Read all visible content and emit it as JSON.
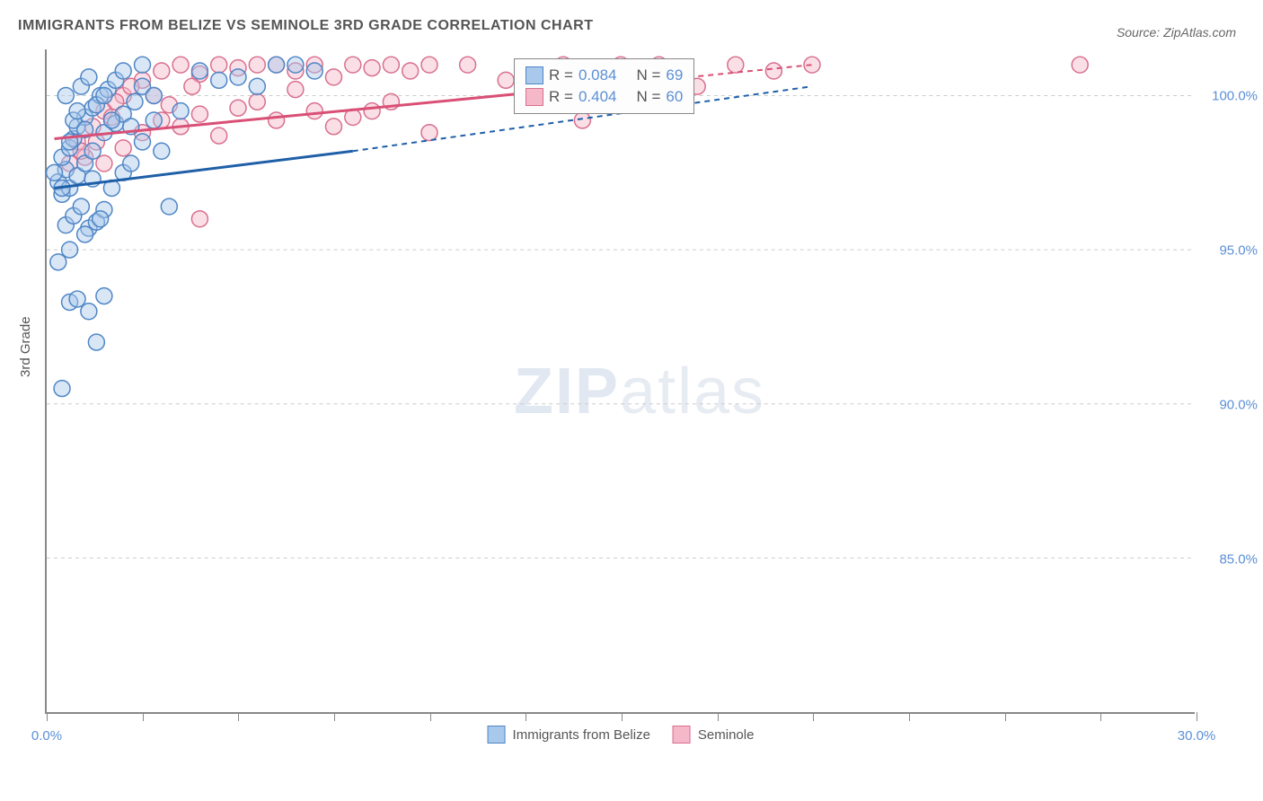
{
  "title": "IMMIGRANTS FROM BELIZE VS SEMINOLE 3RD GRADE CORRELATION CHART",
  "source_label": "Source: ZipAtlas.com",
  "y_axis_label": "3rd Grade",
  "chart": {
    "type": "scatter",
    "xlim": [
      0,
      30
    ],
    "ylim": [
      80,
      101.5
    ],
    "y_ticks": [
      85.0,
      90.0,
      95.0,
      100.0
    ],
    "y_tick_labels": [
      "85.0%",
      "90.0%",
      "95.0%",
      "100.0%"
    ],
    "x_ticks": [
      0,
      2.5,
      5,
      7.5,
      10,
      12.5,
      15,
      17.5,
      20,
      22.5,
      25,
      27.5,
      30
    ],
    "x_tick_labels": {
      "0": "0.0%",
      "30": "30.0%"
    },
    "grid_color": "#cccccc",
    "axis_color": "#888888",
    "background_color": "#ffffff",
    "label_color": "#5b8fd6",
    "marker_radius": 9,
    "marker_stroke_width": 1.5,
    "marker_opacity": 0.45,
    "line_width_solid": 3,
    "line_width_dash": 2,
    "dash_pattern": "6,5"
  },
  "series": {
    "belize": {
      "label": "Immigrants from Belize",
      "R": "0.084",
      "N": "69",
      "fill": "#a8c8ec",
      "stroke": "#4f86c6",
      "line_color": "#1e5fa8",
      "points": [
        [
          0.3,
          97.2
        ],
        [
          0.5,
          97.6
        ],
        [
          0.4,
          98.0
        ],
        [
          0.6,
          98.3
        ],
        [
          0.7,
          98.6
        ],
        [
          0.8,
          99.0
        ],
        [
          1.0,
          99.3
        ],
        [
          1.2,
          99.6
        ],
        [
          1.4,
          100.0
        ],
        [
          1.6,
          100.2
        ],
        [
          0.4,
          96.8
        ],
        [
          0.6,
          97.0
        ],
        [
          0.8,
          97.4
        ],
        [
          1.0,
          97.8
        ],
        [
          1.2,
          98.2
        ],
        [
          1.5,
          98.8
        ],
        [
          1.8,
          99.1
        ],
        [
          2.0,
          99.4
        ],
        [
          2.3,
          99.8
        ],
        [
          2.5,
          100.3
        ],
        [
          0.5,
          95.8
        ],
        [
          0.7,
          96.1
        ],
        [
          0.9,
          96.4
        ],
        [
          1.1,
          95.7
        ],
        [
          1.3,
          95.9
        ],
        [
          1.5,
          96.3
        ],
        [
          1.7,
          97.0
        ],
        [
          2.0,
          97.5
        ],
        [
          2.2,
          99.0
        ],
        [
          2.8,
          100.0
        ],
        [
          0.3,
          94.6
        ],
        [
          0.6,
          93.3
        ],
        [
          0.8,
          93.4
        ],
        [
          1.1,
          93.0
        ],
        [
          1.3,
          92.0
        ],
        [
          1.5,
          93.5
        ],
        [
          0.4,
          90.5
        ],
        [
          0.6,
          95.0
        ],
        [
          1.0,
          95.5
        ],
        [
          1.4,
          96.0
        ],
        [
          3.0,
          98.2
        ],
        [
          3.2,
          96.4
        ],
        [
          3.5,
          99.5
        ],
        [
          4.0,
          100.8
        ],
        [
          4.5,
          100.5
        ],
        [
          5.0,
          100.6
        ],
        [
          5.5,
          100.3
        ],
        [
          6.0,
          101.0
        ],
        [
          6.5,
          101.0
        ],
        [
          7.0,
          100.8
        ],
        [
          1.8,
          100.5
        ],
        [
          2.0,
          100.8
        ],
        [
          2.5,
          101.0
        ],
        [
          0.5,
          100.0
        ],
        [
          0.7,
          99.2
        ],
        [
          0.9,
          100.3
        ],
        [
          1.1,
          100.6
        ],
        [
          1.3,
          99.7
        ],
        [
          1.5,
          100.0
        ],
        [
          1.7,
          99.2
        ],
        [
          2.2,
          97.8
        ],
        [
          2.5,
          98.5
        ],
        [
          0.2,
          97.5
        ],
        [
          0.4,
          97.0
        ],
        [
          0.6,
          98.5
        ],
        [
          0.8,
          99.5
        ],
        [
          1.0,
          98.9
        ],
        [
          1.2,
          97.3
        ],
        [
          2.8,
          99.2
        ]
      ],
      "trend_solid": {
        "x1": 0.2,
        "y1": 97.0,
        "x2": 8.0,
        "y2": 98.2
      },
      "trend_dash": {
        "x1": 8.0,
        "y1": 98.2,
        "x2": 20.0,
        "y2": 100.3
      }
    },
    "seminole": {
      "label": "Seminole",
      "R": "0.404",
      "N": "60",
      "fill": "#f5b8c9",
      "stroke": "#d96f8e",
      "line_color": "#d94f75",
      "points": [
        [
          0.8,
          98.5
        ],
        [
          1.2,
          99.0
        ],
        [
          1.5,
          99.5
        ],
        [
          2.0,
          100.0
        ],
        [
          2.5,
          100.5
        ],
        [
          3.0,
          100.8
        ],
        [
          3.5,
          101.0
        ],
        [
          4.0,
          100.7
        ],
        [
          4.5,
          101.0
        ],
        [
          5.0,
          100.9
        ],
        [
          5.5,
          101.0
        ],
        [
          6.0,
          101.0
        ],
        [
          6.5,
          100.8
        ],
        [
          7.0,
          101.0
        ],
        [
          7.5,
          100.6
        ],
        [
          8.0,
          101.0
        ],
        [
          8.5,
          100.9
        ],
        [
          9.0,
          101.0
        ],
        [
          9.5,
          100.8
        ],
        [
          10.0,
          101.0
        ],
        [
          1.0,
          98.0
        ],
        [
          1.5,
          97.8
        ],
        [
          2.0,
          98.3
        ],
        [
          2.5,
          98.8
        ],
        [
          3.0,
          99.2
        ],
        [
          3.5,
          99.0
        ],
        [
          4.0,
          99.4
        ],
        [
          4.5,
          98.7
        ],
        [
          5.0,
          99.6
        ],
        [
          6.0,
          99.2
        ],
        [
          7.0,
          99.5
        ],
        [
          8.0,
          99.3
        ],
        [
          9.0,
          99.8
        ],
        [
          10.0,
          98.8
        ],
        [
          11.0,
          101.0
        ],
        [
          12.0,
          100.5
        ],
        [
          13.0,
          100.2
        ],
        [
          13.5,
          101.0
        ],
        [
          14.0,
          99.2
        ],
        [
          15.0,
          101.0
        ],
        [
          4.0,
          96.0
        ],
        [
          5.5,
          99.8
        ],
        [
          6.5,
          100.2
        ],
        [
          7.5,
          99.0
        ],
        [
          8.5,
          99.5
        ],
        [
          1.8,
          99.8
        ],
        [
          2.2,
          100.3
        ],
        [
          2.8,
          100.0
        ],
        [
          3.2,
          99.7
        ],
        [
          3.8,
          100.3
        ],
        [
          16.0,
          101.0
        ],
        [
          17.0,
          100.3
        ],
        [
          18.0,
          101.0
        ],
        [
          19.0,
          100.8
        ],
        [
          20.0,
          101.0
        ],
        [
          27.0,
          101.0
        ],
        [
          1.3,
          98.5
        ],
        [
          1.7,
          99.3
        ],
        [
          0.6,
          97.8
        ],
        [
          0.9,
          98.2
        ]
      ],
      "trend_solid": {
        "x1": 0.2,
        "y1": 98.6,
        "x2": 16.0,
        "y2": 100.5
      },
      "trend_dash": {
        "x1": 16.0,
        "y1": 100.5,
        "x2": 20.0,
        "y2": 101.0
      }
    }
  },
  "legend": {
    "r_label": "R =",
    "n_label": "N ="
  },
  "watermark": {
    "bold": "ZIP",
    "light": "atlas"
  }
}
